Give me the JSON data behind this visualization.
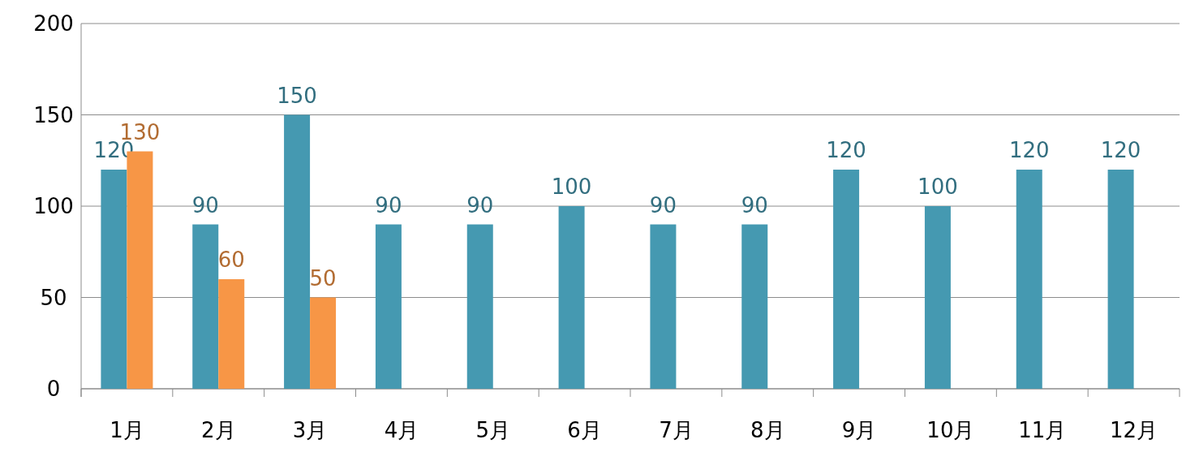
{
  "chart_data": {
    "type": "bar",
    "categories": [
      "1月",
      "2月",
      "3月",
      "4月",
      "5月",
      "6月",
      "7月",
      "8月",
      "9月",
      "10月",
      "11月",
      "12月"
    ],
    "series": [
      {
        "color": "#4599b1",
        "values": [
          120,
          90,
          150,
          90,
          90,
          100,
          90,
          90,
          120,
          100,
          120,
          120
        ]
      },
      {
        "color": "#f79646",
        "values": [
          130,
          60,
          50,
          null,
          null,
          null,
          null,
          null,
          null,
          null,
          null,
          null
        ]
      }
    ],
    "ylim": [
      0,
      200
    ],
    "yticks": [
      0,
      50,
      100,
      150,
      200
    ],
    "grid": "y",
    "data_labels": true
  }
}
